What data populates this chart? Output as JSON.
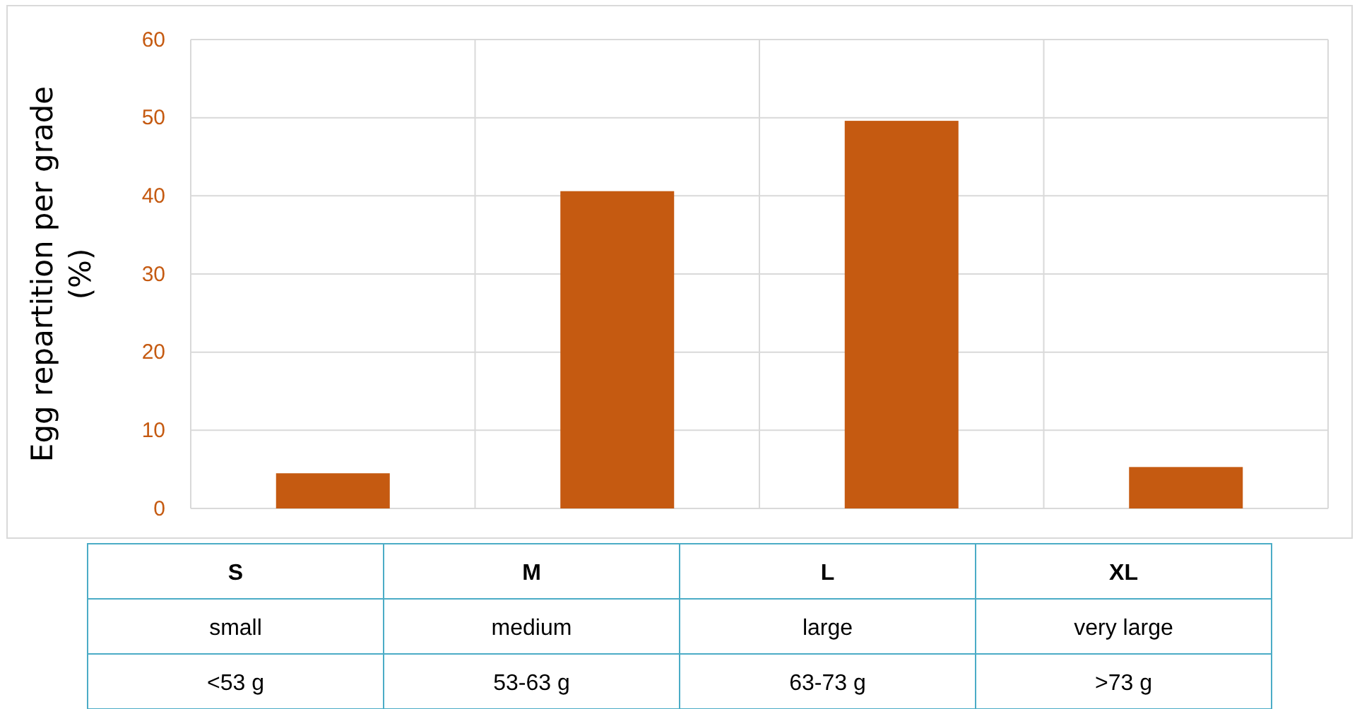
{
  "chart_data": {
    "type": "bar",
    "ylabel": "Egg repartition per grade (%)",
    "categories": [
      "S",
      "M",
      "L",
      "XL"
    ],
    "values": [
      4.5,
      40.6,
      49.6,
      5.3
    ],
    "color": "#c55a11",
    "ylim": [
      0,
      60
    ],
    "yticks": [
      0,
      10,
      20,
      30,
      40,
      50,
      60
    ],
    "grid": true,
    "annotations": [
      "small",
      "medium",
      "large",
      "very large",
      "<53 g",
      "53-63 g",
      "63-73 g",
      ">73 g"
    ]
  }
}
